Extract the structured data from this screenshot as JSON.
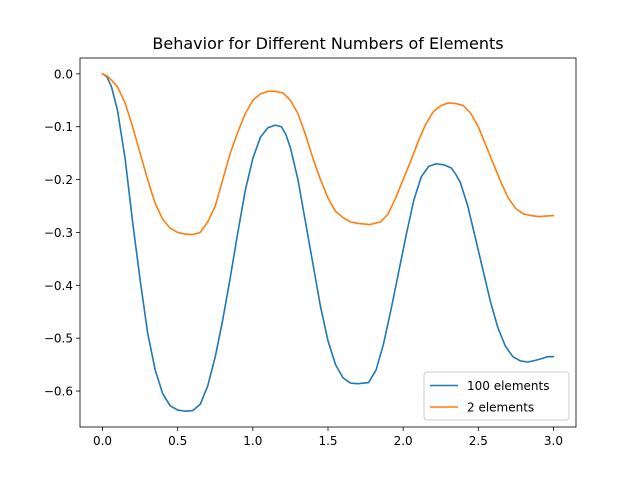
{
  "chart_data": {
    "type": "line",
    "title": "Behavior for Different Numbers of Elements",
    "xlabel": "",
    "ylabel": "",
    "xlim": [
      -0.15,
      3.15
    ],
    "ylim": [
      -0.668,
      0.03
    ],
    "xticks": [
      0.0,
      0.5,
      1.0,
      1.5,
      2.0,
      2.5,
      3.0
    ],
    "xtick_labels": [
      "0.0",
      "0.5",
      "1.0",
      "1.5",
      "2.0",
      "2.5",
      "3.0"
    ],
    "yticks": [
      0.0,
      -0.1,
      -0.2,
      -0.3,
      -0.4,
      -0.5,
      -0.6
    ],
    "ytick_labels": [
      "0.0",
      "−0.1",
      "−0.2",
      "−0.3",
      "−0.4",
      "−0.5",
      "−0.6"
    ],
    "grid": false,
    "legend_position": "lower-right",
    "series": [
      {
        "name": "100 elements",
        "color": "#1f77b4",
        "x": [
          0.0,
          0.03,
          0.06,
          0.1,
          0.15,
          0.2,
          0.25,
          0.3,
          0.35,
          0.4,
          0.45,
          0.5,
          0.55,
          0.6,
          0.65,
          0.7,
          0.75,
          0.8,
          0.85,
          0.9,
          0.95,
          1.0,
          1.05,
          1.1,
          1.15,
          1.19,
          1.22,
          1.25,
          1.3,
          1.35,
          1.4,
          1.45,
          1.5,
          1.55,
          1.6,
          1.65,
          1.7,
          1.77,
          1.82,
          1.87,
          1.92,
          1.97,
          2.02,
          2.07,
          2.12,
          2.17,
          2.22,
          2.27,
          2.32,
          2.35,
          2.38,
          2.43,
          2.48,
          2.53,
          2.58,
          2.63,
          2.68,
          2.73,
          2.78,
          2.83,
          2.88,
          2.93,
          2.96,
          3.0
        ],
        "y": [
          0.0,
          -0.006,
          -0.025,
          -0.07,
          -0.16,
          -0.28,
          -0.39,
          -0.49,
          -0.56,
          -0.605,
          -0.628,
          -0.636,
          -0.638,
          -0.637,
          -0.625,
          -0.59,
          -0.535,
          -0.465,
          -0.385,
          -0.3,
          -0.22,
          -0.16,
          -0.12,
          -0.102,
          -0.097,
          -0.1,
          -0.115,
          -0.14,
          -0.2,
          -0.28,
          -0.36,
          -0.44,
          -0.505,
          -0.55,
          -0.575,
          -0.585,
          -0.586,
          -0.584,
          -0.56,
          -0.51,
          -0.445,
          -0.375,
          -0.305,
          -0.24,
          -0.195,
          -0.175,
          -0.17,
          -0.172,
          -0.178,
          -0.19,
          -0.205,
          -0.25,
          -0.31,
          -0.37,
          -0.43,
          -0.48,
          -0.515,
          -0.535,
          -0.543,
          -0.545,
          -0.542,
          -0.538,
          -0.535,
          -0.535
        ]
      },
      {
        "name": "2 elements",
        "color": "#ff7f0e",
        "x": [
          0.0,
          0.03,
          0.06,
          0.1,
          0.15,
          0.2,
          0.25,
          0.3,
          0.35,
          0.4,
          0.45,
          0.5,
          0.55,
          0.6,
          0.65,
          0.7,
          0.75,
          0.8,
          0.85,
          0.9,
          0.95,
          1.0,
          1.05,
          1.1,
          1.15,
          1.2,
          1.25,
          1.3,
          1.35,
          1.4,
          1.45,
          1.5,
          1.55,
          1.6,
          1.65,
          1.7,
          1.78,
          1.85,
          1.9,
          1.95,
          2.0,
          2.05,
          2.1,
          2.15,
          2.2,
          2.25,
          2.3,
          2.35,
          2.4,
          2.45,
          2.5,
          2.55,
          2.6,
          2.65,
          2.7,
          2.75,
          2.8,
          2.85,
          2.9,
          2.95,
          3.0
        ],
        "y": [
          0.0,
          -0.004,
          -0.012,
          -0.025,
          -0.055,
          -0.1,
          -0.15,
          -0.2,
          -0.245,
          -0.275,
          -0.292,
          -0.3,
          -0.303,
          -0.304,
          -0.3,
          -0.28,
          -0.25,
          -0.2,
          -0.15,
          -0.11,
          -0.075,
          -0.05,
          -0.038,
          -0.033,
          -0.033,
          -0.036,
          -0.05,
          -0.075,
          -0.115,
          -0.16,
          -0.2,
          -0.235,
          -0.26,
          -0.272,
          -0.28,
          -0.283,
          -0.285,
          -0.28,
          -0.265,
          -0.235,
          -0.2,
          -0.165,
          -0.128,
          -0.095,
          -0.072,
          -0.06,
          -0.055,
          -0.056,
          -0.06,
          -0.075,
          -0.1,
          -0.135,
          -0.17,
          -0.205,
          -0.235,
          -0.255,
          -0.265,
          -0.268,
          -0.27,
          -0.269,
          -0.268
        ]
      }
    ]
  }
}
